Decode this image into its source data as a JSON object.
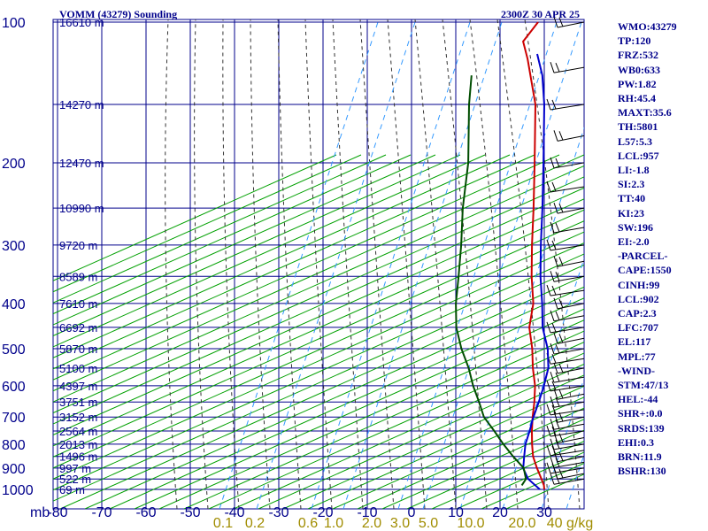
{
  "header": {
    "title": "VOMM (43279) Sounding",
    "time": "2300Z 30 APR 25"
  },
  "indices": [
    "WMO:43279",
    "TP:120",
    "FRZ:532",
    "WB0:633",
    "PW:1.82",
    "RH:45.4",
    "MAXT:35.6",
    "TH:5801",
    "L57:5.3",
    "LCL:957",
    "LI:-1.8",
    "SI:2.3",
    "TT:40",
    "KI:23",
    "SW:196",
    "EI:-2.0",
    "-PARCEL-",
    "CAPE:1550",
    "CINH:99",
    "LCL:902",
    "CAP:2.3",
    "LFC:707",
    "EL:117",
    "MPL:77",
    "-WIND-",
    "STM:47/13",
    "HEL:-44",
    "SHR+:0.0",
    "SRDS:139",
    "EHI:0.3",
    "BRN:11.9",
    "BSHR:130"
  ],
  "colors": {
    "grid": "#00008b",
    "dry_adiabat": "#00a000",
    "moist_adiabat": "#333333",
    "mixing_ratio": "#3399ff",
    "temperature": "#cc0000",
    "parcel": "#0000cc",
    "dewpoint": "#004d00",
    "mixing_label": "#a08c00"
  },
  "chart_data": {
    "type": "line",
    "title": "VOMM (43279) Sounding",
    "ylabel": "mb",
    "xlabel": "",
    "y_axis": "pressure (log scale, inverted)",
    "ylim": [
      1000,
      100
    ],
    "xlim": [
      -80,
      40
    ],
    "pressure_ticks": [
      "100",
      "200",
      "300",
      "400",
      "500",
      "600",
      "700",
      "800",
      "900",
      "1000"
    ],
    "temperature_ticks": [
      "-80",
      "-70",
      "-60",
      "-50",
      "-40",
      "-30",
      "-20",
      "-10",
      "0",
      "10",
      "20",
      "30"
    ],
    "height_labels": [
      {
        "p": 100,
        "label": "16610 m"
      },
      {
        "p": 150,
        "label": "14270 m"
      },
      {
        "p": 200,
        "label": "12470 m"
      },
      {
        "p": 250,
        "label": "10990 m"
      },
      {
        "p": 300,
        "label": "9720 m"
      },
      {
        "p": 350,
        "label": "8589 m"
      },
      {
        "p": 400,
        "label": "7610 m"
      },
      {
        "p": 450,
        "label": "6692 m"
      },
      {
        "p": 500,
        "label": "5870 m"
      },
      {
        "p": 550,
        "label": "5100 m"
      },
      {
        "p": 600,
        "label": "4397 m"
      },
      {
        "p": 650,
        "label": "3751 m"
      },
      {
        "p": 700,
        "label": "3152 m"
      },
      {
        "p": 750,
        "label": "2564 m"
      },
      {
        "p": 800,
        "label": "2013 m"
      },
      {
        "p": 850,
        "label": "1496 m"
      },
      {
        "p": 900,
        "label": "997 m"
      },
      {
        "p": 950,
        "label": "522 m"
      },
      {
        "p": 1000,
        "label": "69 m"
      }
    ],
    "mixing_ratio_labels": [
      "0.1",
      "0.2",
      "0.6",
      "1.0",
      "2.0",
      "3.0",
      "5.0",
      "10.0",
      "20.0",
      "40 g/kg"
    ],
    "series": [
      {
        "key": "temperature",
        "points": [
          [
            1000,
            30
          ],
          [
            980,
            29
          ],
          [
            950,
            27
          ],
          [
            900,
            23.5
          ],
          [
            850,
            20
          ],
          [
            800,
            17
          ],
          [
            750,
            14
          ],
          [
            700,
            11
          ],
          [
            650,
            8
          ],
          [
            600,
            4.5
          ],
          [
            550,
            0
          ],
          [
            500,
            -4.5
          ],
          [
            450,
            -10
          ],
          [
            400,
            -14.5
          ],
          [
            350,
            -21
          ],
          [
            300,
            -28
          ],
          [
            250,
            -36
          ],
          [
            200,
            -46
          ],
          [
            150,
            -59
          ],
          [
            120,
            -71
          ],
          [
            110,
            -76
          ],
          [
            100,
            -77
          ]
        ]
      },
      {
        "key": "parcel",
        "points": [
          [
            1000,
            29
          ],
          [
            950,
            24
          ],
          [
            902,
            20.5
          ],
          [
            850,
            18
          ],
          [
            800,
            15.5
          ],
          [
            750,
            13.5
          ],
          [
            707,
            11.5
          ],
          [
            650,
            9
          ],
          [
            600,
            6.5
          ],
          [
            550,
            3.5
          ],
          [
            500,
            -1
          ],
          [
            450,
            -7
          ],
          [
            400,
            -12.5
          ],
          [
            350,
            -19
          ],
          [
            300,
            -26
          ],
          [
            250,
            -34
          ],
          [
            200,
            -44
          ],
          [
            150,
            -57
          ],
          [
            130,
            -64
          ],
          [
            117,
            -70
          ]
        ]
      },
      {
        "key": "dewpoint",
        "points": [
          [
            980,
            24
          ],
          [
            950,
            23.5
          ],
          [
            900,
            20.5
          ],
          [
            850,
            15.5
          ],
          [
            800,
            10.5
          ],
          [
            750,
            5.5
          ],
          [
            700,
            0
          ],
          [
            650,
            -4.5
          ],
          [
            600,
            -9.5
          ],
          [
            550,
            -14.5
          ],
          [
            500,
            -20.5
          ],
          [
            450,
            -26.5
          ],
          [
            400,
            -32
          ],
          [
            350,
            -37.5
          ],
          [
            300,
            -44
          ],
          [
            250,
            -52
          ],
          [
            200,
            -61
          ],
          [
            150,
            -74
          ],
          [
            130,
            -80
          ]
        ]
      }
    ],
    "grid": true
  }
}
